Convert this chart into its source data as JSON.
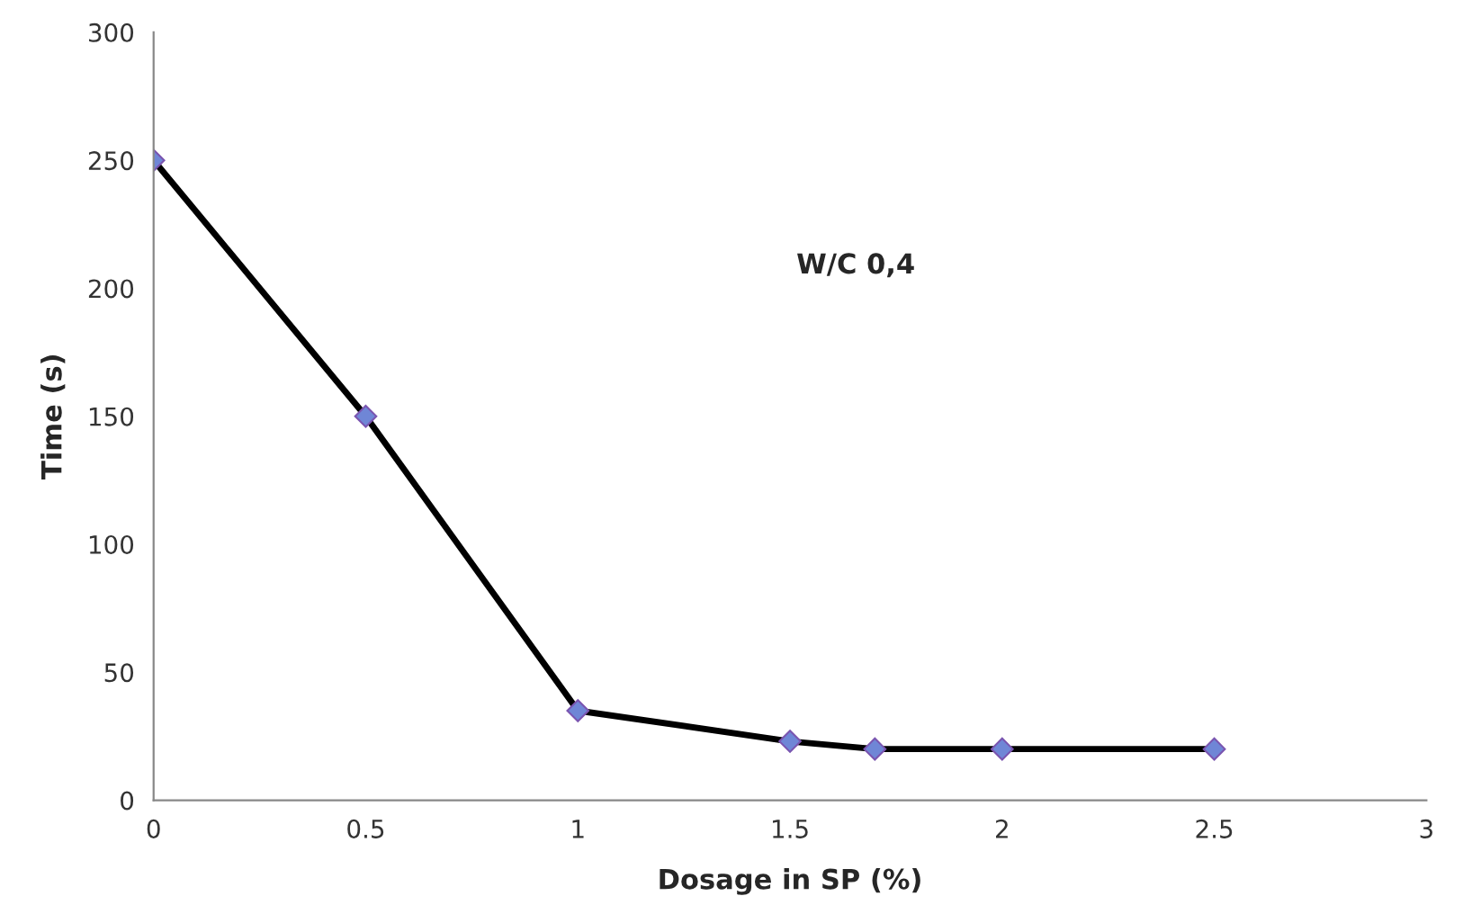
{
  "chart_data": {
    "type": "line",
    "xlabel": "Dosage in SP (%)",
    "ylabel": "Time (s)",
    "annotations": [
      "W/C 0,4"
    ],
    "x": [
      0,
      0.5,
      1,
      1.5,
      1.7,
      2,
      2.5
    ],
    "series": [
      {
        "color": "#000000",
        "values": [
          250,
          150,
          35,
          23,
          20,
          20,
          20
        ]
      }
    ],
    "xlim": [
      0,
      3
    ],
    "xticks": [
      0,
      0.5,
      1,
      1.5,
      2,
      2.5,
      3
    ],
    "ylim": [
      0,
      300
    ],
    "yticks": [
      0,
      50,
      100,
      150,
      200,
      250,
      300
    ],
    "grid": false,
    "legend": false,
    "marker": "diamond",
    "line_style": "solid"
  }
}
